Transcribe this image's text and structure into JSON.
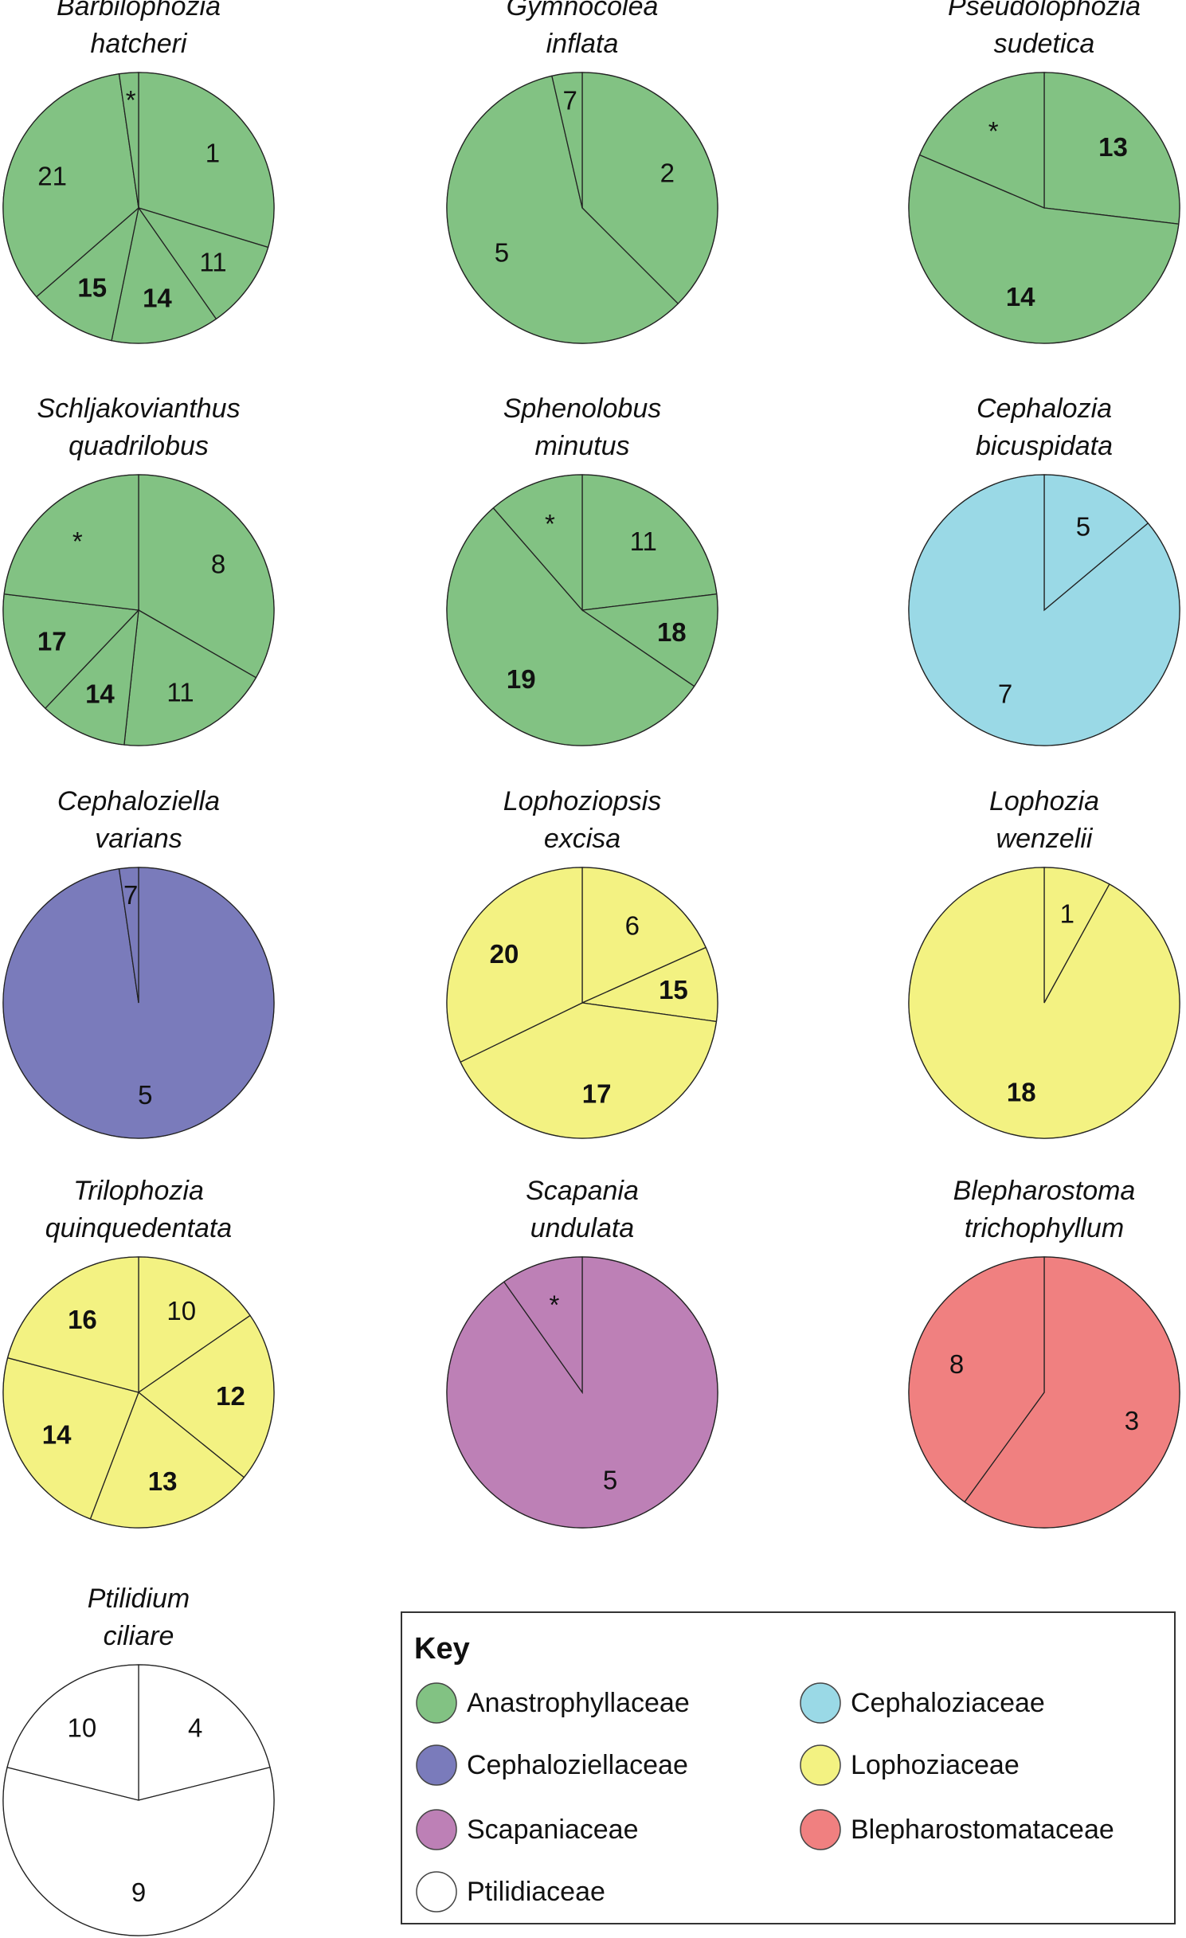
{
  "chart_data": {
    "type": "pie",
    "note_marks": "Slice fractions estimated clockwise from 12 o'clock",
    "colors": {
      "Anastrophyllaceae": "#82c283",
      "Cephaloziaceae": "#9ad9e6",
      "Cephaloziellaceae": "#7a7bbb",
      "Lophoziaceae": "#f3f282",
      "Scapaniaceae": "#bd80b6",
      "Blepharostomataceae": "#f08080",
      "Ptilidiaceae": "#ffffff"
    },
    "pies": [
      {
        "title": [
          "Barbilophozia",
          "hatcheri"
        ],
        "family": "Anastrophyllaceae",
        "slices": [
          {
            "label": "1",
            "value": 0.297,
            "bold": false
          },
          {
            "label": "11",
            "value": 0.106,
            "bold": false
          },
          {
            "label": "14",
            "value": 0.129,
            "bold": true
          },
          {
            "label": "15",
            "value": 0.104,
            "bold": true
          },
          {
            "label": "21",
            "value": 0.341,
            "bold": false
          },
          {
            "label": "*",
            "value": 0.023,
            "bold": false
          }
        ]
      },
      {
        "title": [
          "Gymnocolea",
          "inflata"
        ],
        "family": "Anastrophyllaceae",
        "slices": [
          {
            "label": "2",
            "value": 0.375,
            "bold": false
          },
          {
            "label": "5",
            "value": 0.589,
            "bold": false
          },
          {
            "label": "7",
            "value": 0.036,
            "bold": false
          }
        ]
      },
      {
        "title": [
          "Pseudolophozia",
          "sudetica"
        ],
        "family": "Anastrophyllaceae",
        "slices": [
          {
            "label": "13",
            "value": 0.269,
            "bold": true
          },
          {
            "label": "14",
            "value": 0.545,
            "bold": true
          },
          {
            "label": "*",
            "value": 0.186,
            "bold": false
          }
        ]
      },
      {
        "title": [
          "Schljakovianthus",
          "quadrilobus"
        ],
        "family": "Anastrophyllaceae",
        "slices": [
          {
            "label": "8",
            "value": 0.333,
            "bold": false
          },
          {
            "label": "11",
            "value": 0.184,
            "bold": false
          },
          {
            "label": "14",
            "value": 0.104,
            "bold": true
          },
          {
            "label": "17",
            "value": 0.148,
            "bold": true
          },
          {
            "label": "*",
            "value": 0.231,
            "bold": false
          }
        ]
      },
      {
        "title": [
          "Sphenolobus",
          "minutus"
        ],
        "family": "Anastrophyllaceae",
        "slices": [
          {
            "label": "11",
            "value": 0.231,
            "bold": false
          },
          {
            "label": "18",
            "value": 0.114,
            "bold": true
          },
          {
            "label": "19",
            "value": 0.541,
            "bold": true
          },
          {
            "label": "*",
            "value": 0.114,
            "bold": false
          }
        ]
      },
      {
        "title": [
          "Cephalozia",
          "bicuspidata"
        ],
        "family": "Cephaloziaceae",
        "slices": [
          {
            "label": "5",
            "value": 0.139,
            "bold": false
          },
          {
            "label": "7",
            "value": 0.861,
            "bold": false
          }
        ]
      },
      {
        "title": [
          "Cephaloziella",
          "varians"
        ],
        "family": "Cephaloziellaceae",
        "slices": [
          {
            "label": "5",
            "value": 0.977,
            "bold": false
          },
          {
            "label": "7",
            "value": 0.023,
            "bold": false
          }
        ]
      },
      {
        "title": [
          "Lophoziopsis",
          "excisa"
        ],
        "family": "Lophoziaceae",
        "slices": [
          {
            "label": "6",
            "value": 0.183,
            "bold": false
          },
          {
            "label": "15",
            "value": 0.089,
            "bold": true
          },
          {
            "label": "17",
            "value": 0.406,
            "bold": true
          },
          {
            "label": "20",
            "value": 0.322,
            "bold": true
          }
        ]
      },
      {
        "title": [
          "Lophozia",
          "wenzelii"
        ],
        "family": "Lophoziaceae",
        "slices": [
          {
            "label": "1",
            "value": 0.08,
            "bold": false
          },
          {
            "label": "18",
            "value": 0.92,
            "bold": true
          }
        ]
      },
      {
        "title": [
          "Trilophozia",
          "quinquedentata"
        ],
        "family": "Lophoziaceae",
        "slices": [
          {
            "label": "10",
            "value": 0.154,
            "bold": false
          },
          {
            "label": "12",
            "value": 0.204,
            "bold": true
          },
          {
            "label": "13",
            "value": 0.2,
            "bold": true
          },
          {
            "label": "14",
            "value": 0.233,
            "bold": true
          },
          {
            "label": "16",
            "value": 0.209,
            "bold": true
          }
        ]
      },
      {
        "title": [
          "Scapania",
          "undulata"
        ],
        "family": "Scapaniaceae",
        "slices": [
          {
            "label": "5",
            "value": 0.902,
            "bold": false
          },
          {
            "label": "*",
            "value": 0.098,
            "bold": false
          }
        ]
      },
      {
        "title": [
          "Blepharostoma",
          "trichophyllum"
        ],
        "family": "Blepharostomataceae",
        "slices": [
          {
            "label": "3",
            "value": 0.6,
            "bold": false
          },
          {
            "label": "8",
            "value": 0.4,
            "bold": false
          }
        ]
      },
      {
        "title": [
          "Ptilidium",
          "ciliare"
        ],
        "family": "Ptilidiaceae",
        "slices": [
          {
            "label": "4",
            "value": 0.211,
            "bold": false
          },
          {
            "label": "9",
            "value": 0.578,
            "bold": false
          },
          {
            "label": "10",
            "value": 0.211,
            "bold": false
          }
        ]
      }
    ],
    "legend": {
      "title": "Key",
      "placement": "bottom-right",
      "entries": [
        "Anastrophyllaceae",
        "Cephaloziaceae",
        "Cephaloziellaceae",
        "Lophoziaceae",
        "Scapaniaceae",
        "Blepharostomataceae",
        "Ptilidiaceae"
      ]
    }
  }
}
